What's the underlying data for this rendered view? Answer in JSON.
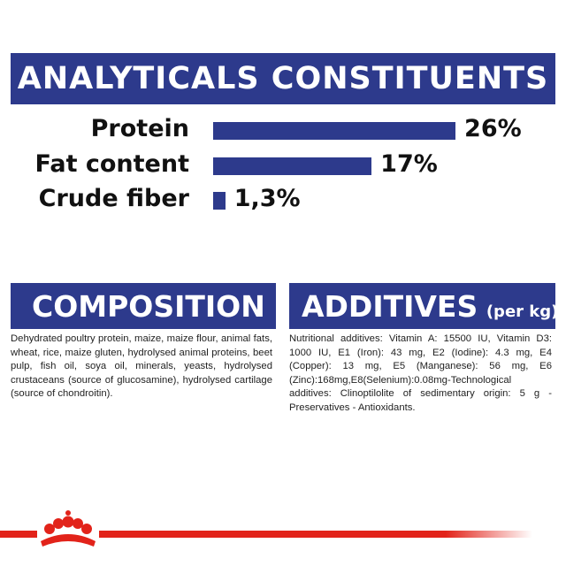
{
  "analyticals": {
    "title": "ANALYTICALS CONSTITUENTS",
    "items": [
      {
        "label": "Protein",
        "value": 26,
        "value_label": "26%"
      },
      {
        "label": "Fat content",
        "value": 17,
        "value_label": "17%"
      },
      {
        "label": "Crude fiber",
        "value": 1.3,
        "value_label": "1,3%"
      }
    ]
  },
  "composition": {
    "title": "COMPOSITION",
    "text": "Dehydrated poultry protein, maize, maize flour, animal fats, wheat, rice, maize gluten, hydrolysed animal proteins, beet pulp, fish oil, soya oil, minerals, yeasts, hydrolysed crustaceans (source of glucosamine), hydrolysed cartilage (source of chondroitin)."
  },
  "additives": {
    "title": "ADDITIVES",
    "unit": "(per kg)",
    "text": "Nutritional additives: Vitamin A: 15500 IU, Vitamin D3: 1000 IU, E1 (Iron): 43 mg, E2 (Iodine): 4.3 mg, E4 (Copper): 13 mg, E5 (Manganese): 56 mg, E6 (Zinc):168mg,E8(Selenium):0.08mg-Technological additives: Clinoptilolite of sedimentary origin: 5 g - Preservatives - Antioxidants."
  }
}
